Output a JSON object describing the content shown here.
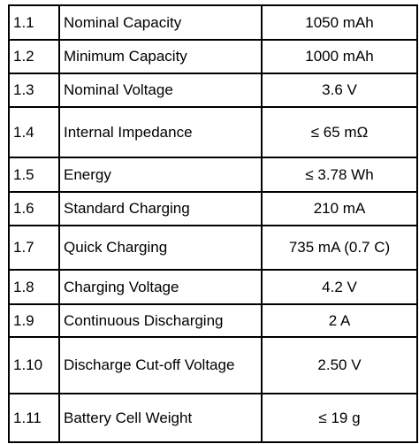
{
  "table": {
    "rows": [
      [
        "1.1",
        "Nominal Capacity",
        "1050 mAh"
      ],
      [
        "1.2",
        "Minimum Capacity",
        "1000 mAh"
      ],
      [
        "1.3",
        "Nominal Voltage",
        "3.6 V"
      ],
      [
        "1.4",
        "Internal Impedance",
        "≤ 65 mΩ"
      ],
      [
        "1.5",
        "Energy",
        "≤ 3.78 Wh"
      ],
      [
        "1.6",
        "Standard Charging",
        "210 mA"
      ],
      [
        "1.7",
        "Quick Charging",
        "735 mA (0.7 C)"
      ],
      [
        "1.8",
        "Charging Voltage",
        "4.2 V"
      ],
      [
        "1.9",
        "Continuous Discharging",
        "2 A"
      ],
      [
        "1.10",
        "Discharge Cut-off Voltage",
        "2.50 V"
      ],
      [
        "1.11",
        "Battery Cell Weight",
        "≤ 19 g"
      ]
    ]
  }
}
